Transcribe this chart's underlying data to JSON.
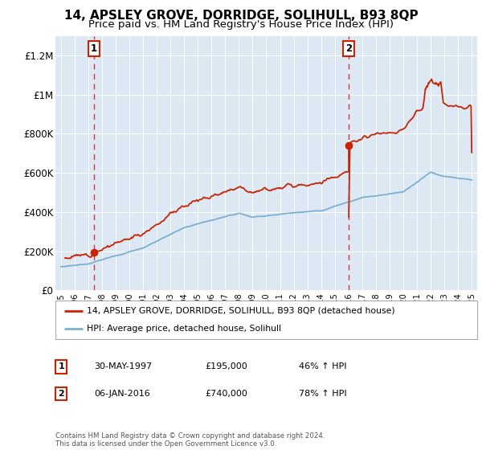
{
  "title": "14, APSLEY GROVE, DORRIDGE, SOLIHULL, B93 8QP",
  "subtitle": "Price paid vs. HM Land Registry's House Price Index (HPI)",
  "ylim": [
    0,
    1300000
  ],
  "yticks": [
    0,
    200000,
    400000,
    600000,
    800000,
    1000000,
    1200000
  ],
  "ytick_labels": [
    "£0",
    "£200K",
    "£400K",
    "£600K",
    "£800K",
    "£1M",
    "£1.2M"
  ],
  "plot_bg_color": "#dce9f5",
  "purchase1_date": 1997.41,
  "purchase1_price": 195000,
  "purchase1_label": "30-MAY-1997",
  "purchase1_price_str": "£195,000",
  "purchase1_pct": "46% ↑ HPI",
  "purchase2_date": 2016.02,
  "purchase2_price": 740000,
  "purchase2_label": "06-JAN-2016",
  "purchase2_price_str": "£740,000",
  "purchase2_pct": "78% ↑ HPI",
  "red_line_color": "#cc2200",
  "blue_line_color": "#7aafd4",
  "dashed_line_color": "#dd3333",
  "legend_line1": "14, APSLEY GROVE, DORRIDGE, SOLIHULL, B93 8QP (detached house)",
  "legend_line2": "HPI: Average price, detached house, Solihull",
  "footer": "Contains HM Land Registry data © Crown copyright and database right 2024.\nThis data is licensed under the Open Government Licence v3.0.",
  "title_fontsize": 11,
  "subtitle_fontsize": 9.5
}
